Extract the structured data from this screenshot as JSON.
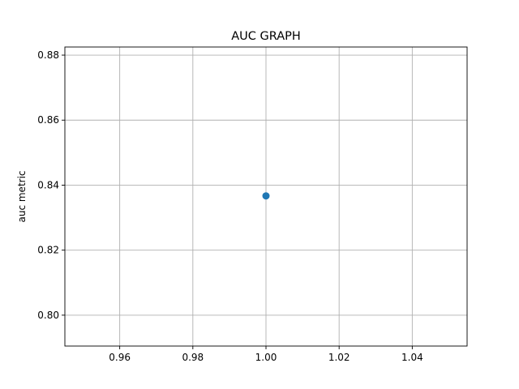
{
  "chart_data": {
    "type": "scatter",
    "title": "AUC GRAPH",
    "xlabel": "",
    "ylabel": "auc metric",
    "xlim": [
      0.945,
      1.055
    ],
    "ylim": [
      0.7905,
      0.8825
    ],
    "xticks": [
      0.96,
      0.98,
      1.0,
      1.02,
      1.04
    ],
    "xtick_labels": [
      "0.96",
      "0.98",
      "1.00",
      "1.02",
      "1.04"
    ],
    "yticks": [
      0.8,
      0.82,
      0.84,
      0.86,
      0.88
    ],
    "ytick_labels": [
      "0.80",
      "0.82",
      "0.84",
      "0.86",
      "0.88"
    ],
    "grid": true,
    "series": [
      {
        "x": [
          1.0
        ],
        "y": [
          0.8367
        ],
        "color": "#1f77b4"
      }
    ]
  }
}
